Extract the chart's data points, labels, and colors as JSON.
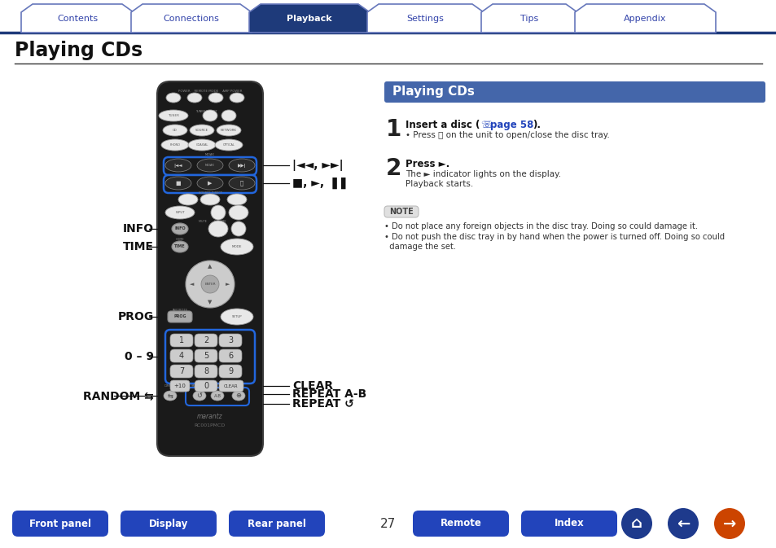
{
  "title": "Playing CDs",
  "page_num": "27",
  "bg_color": "#ffffff",
  "nav_tabs": [
    "Contents",
    "Connections",
    "Playback",
    "Settings",
    "Tips",
    "Appendix"
  ],
  "active_tab": "Playback",
  "tab_active_bg": "#1e3a7a",
  "tab_inactive_bg": "#ffffff",
  "tab_border_color": "#6677bb",
  "tab_text_active": "#ffffff",
  "tab_text_inactive": "#3344aa",
  "tab_line_color": "#1e3a7a",
  "section_header": "Playing CDs",
  "section_header_bg": "#4466aa",
  "section_header_text": "#ffffff",
  "step1_text": "Insert a disc (",
  "step1_link": "page 58",
  "step1_end": ").",
  "step1_sub": "• Press ⏫ on the unit to open/close the disc tray.",
  "step2_bold": "Press ►.",
  "step2_sub1": "The ► indicator lights on the display.",
  "step2_sub2": "Playback starts.",
  "note_label": "NOTE",
  "note1": "• Do not place any foreign objects in the disc tray. Doing so could damage it.",
  "note2": "• Do not push the disc tray in by hand when the power is turned off. Doing so could",
  "note3": "  damage the set.",
  "label_info": "INFO",
  "label_time": "TIME",
  "label_prog": "PROG",
  "label_09": "0 – 9",
  "label_random": "RANDOM ⇆",
  "label_clear": "CLEAR",
  "label_repeat_ab": "REPEAT A-B",
  "label_repeat": "REPEAT ↺",
  "label_skip": "|◄◄, ►►|",
  "label_play_stop": "■, ►, ▐▐",
  "bottom_btns_left": [
    "Front panel",
    "Display",
    "Rear panel"
  ],
  "bottom_btns_right": [
    "Remote",
    "Index"
  ],
  "bottom_btn_bg": "#2244bb",
  "bottom_btn_text": "#ffffff",
  "remote_body_color": "#1a1a1a",
  "remote_body_edge": "#3a3a3a",
  "remote_btn_color": "#cccccc",
  "remote_btn_edge": "#999999",
  "remote_blue_edge": "#2266dd",
  "remote_blue_fill": "#ddddee",
  "label_color": "#111111",
  "line_color": "#111111"
}
